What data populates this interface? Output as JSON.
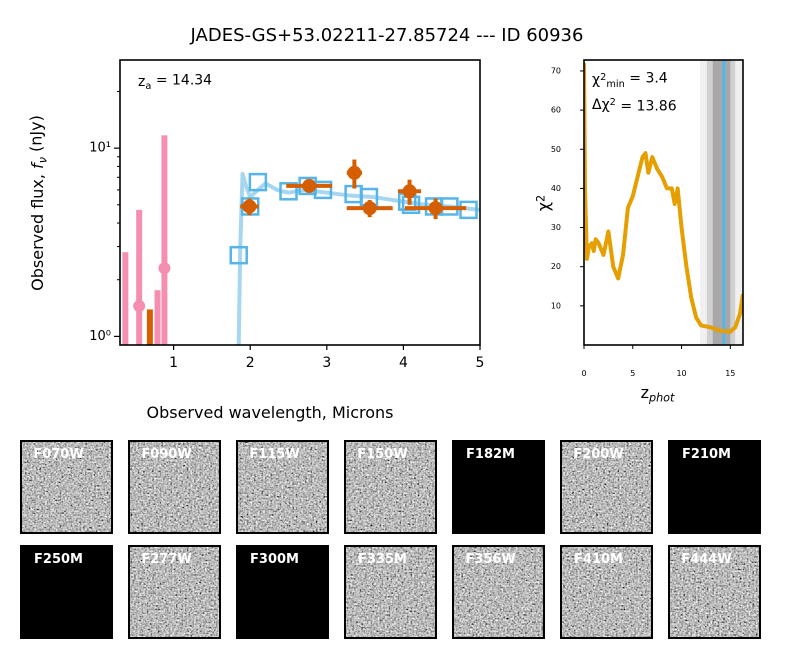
{
  "title": "JADES-GS+53.02211-27.85724 --- ID 60936",
  "chart_data": [
    {
      "type": "sed",
      "xlabel": [
        {
          "text": "Observed wavelength, Microns"
        }
      ],
      "ylabel": [
        {
          "text": "Observed flux, "
        },
        {
          "text": "f",
          "italic": true
        },
        {
          "text": "ν",
          "sub": true,
          "italic": true
        },
        {
          "text": " (nJy)"
        }
      ],
      "annotation": [
        {
          "text": "z"
        },
        {
          "text": "a",
          "sub": true
        },
        {
          "text": " = 14.34"
        }
      ],
      "xlim": [
        0.3,
        5
      ],
      "ylim": [
        0.9,
        29.4
      ],
      "ylog": true,
      "xticks": [
        1,
        2,
        3,
        4,
        5
      ],
      "yticks": [
        {
          "value": 1,
          "label": "10⁰"
        },
        {
          "value": 10,
          "label": "10¹"
        }
      ],
      "model_spectrum": {
        "color": "#a6d6f0",
        "x": [
          1.85,
          1.87,
          1.9,
          1.95,
          2.0,
          2.1,
          2.2,
          2.35,
          2.5,
          2.7,
          3.0,
          3.3,
          3.6,
          4.0,
          4.3,
          4.6,
          5.0
        ],
        "values": [
          0.9,
          3.0,
          7.3,
          6.2,
          5.5,
          6.0,
          6.5,
          6.0,
          5.8,
          6.0,
          5.8,
          5.6,
          5.5,
          5.2,
          5.0,
          4.9,
          4.7
        ]
      },
      "limits": {
        "x": [
          0.37,
          0.55,
          0.69,
          0.79,
          0.88
        ],
        "values": [
          2.8,
          4.7,
          1.39,
          1.76,
          11.7
        ],
        "colors": [
          "#f48fb1",
          "#f48fb1",
          "#d55e00",
          "#f48fb1",
          "#f48fb1"
        ]
      },
      "low_snr": {
        "color": "#f48fb1",
        "x": [
          0.55,
          0.88
        ],
        "values": [
          1.45,
          2.3
        ],
        "yerr": [
          0.2,
          0.3
        ]
      },
      "model_photometry": {
        "color": "#56b4e9",
        "x": [
          1.85,
          2.0,
          2.1,
          2.5,
          2.75,
          2.95,
          3.35,
          3.55,
          4.05,
          4.1,
          4.4,
          4.6,
          4.85
        ],
        "values": [
          2.7,
          4.9,
          6.6,
          5.9,
          6.3,
          6.0,
          5.7,
          5.5,
          5.2,
          5.0,
          4.9,
          4.9,
          4.7
        ]
      },
      "photometry": {
        "color": "#d55e00",
        "x": [
          1.99,
          2.77,
          3.36,
          3.56,
          4.08,
          4.42
        ],
        "values": [
          4.9,
          6.3,
          7.4,
          4.8,
          5.9,
          4.8
        ],
        "xerr": [
          0.12,
          0.3,
          0.1,
          0.3,
          0.15,
          0.4
        ],
        "yerr": [
          0.5,
          0.5,
          1.3,
          0.5,
          0.9,
          0.6
        ]
      }
    },
    {
      "type": "chi2",
      "xlabel": [
        {
          "text": "z"
        },
        {
          "text": "phot",
          "sub": true,
          "italic": true
        }
      ],
      "ylabel": [
        {
          "text": "χ"
        },
        {
          "text": "2",
          "sup": true
        }
      ],
      "annotations": [
        [
          {
            "text": "χ"
          },
          {
            "text": "2",
            "sup": true
          },
          {
            "text": "min",
            "sub": true
          },
          {
            "text": " = 3.4"
          }
        ],
        [
          {
            "text": "Δχ"
          },
          {
            "text": "2",
            "sup": true
          },
          {
            "text": " = 13.86"
          }
        ]
      ],
      "xlim": [
        0,
        16.3
      ],
      "ylim": [
        0,
        72.8
      ],
      "xticks": [
        0,
        5,
        10,
        15
      ],
      "yticks": [
        10,
        20,
        30,
        40,
        50,
        60,
        70
      ],
      "bands": [
        {
          "lo": 11.9,
          "hi": 16.3,
          "color": "#f0f0f0"
        },
        {
          "lo": 12.6,
          "hi": 15.5,
          "color": "#d0d0d0"
        },
        {
          "lo": 13.2,
          "hi": 15.0,
          "color": "#a8a8a8"
        }
      ],
      "z_best": 14.34,
      "z_color": "#56b4e9",
      "color": "#e69f00",
      "x": [
        0,
        0.1,
        0.3,
        0.5,
        0.8,
        1.0,
        1.2,
        1.5,
        2.0,
        2.5,
        3.0,
        3.5,
        4.0,
        4.5,
        5.0,
        5.5,
        6.0,
        6.3,
        6.6,
        7.0,
        7.5,
        8.0,
        8.5,
        9.0,
        9.3,
        9.6,
        10.0,
        10.5,
        11.0,
        11.5,
        12.0,
        13.0,
        14.0,
        15.0,
        15.5,
        16.0,
        16.3
      ],
      "values": [
        72,
        40,
        22,
        25,
        26,
        24,
        27,
        26,
        23,
        29,
        20,
        17,
        23,
        35,
        38,
        43,
        48,
        49,
        44,
        48,
        45,
        43,
        40,
        40,
        36,
        40,
        30,
        20,
        12,
        7,
        5,
        4.5,
        3.6,
        3.4,
        4.5,
        8,
        13
      ]
    }
  ],
  "stamps": [
    {
      "filter": "F070W",
      "blank": false
    },
    {
      "filter": "F090W",
      "blank": false
    },
    {
      "filter": "F115W",
      "blank": false
    },
    {
      "filter": "F150W",
      "blank": false
    },
    {
      "filter": "F182M",
      "blank": true
    },
    {
      "filter": "F200W",
      "blank": false
    },
    {
      "filter": "F210M",
      "blank": true
    },
    {
      "filter": "F250M",
      "blank": true
    },
    {
      "filter": "F277W",
      "blank": false
    },
    {
      "filter": "F300M",
      "blank": true
    },
    {
      "filter": "F335M",
      "blank": false
    },
    {
      "filter": "F356W",
      "blank": false
    },
    {
      "filter": "F410M",
      "blank": false
    },
    {
      "filter": "F444W",
      "blank": false
    }
  ]
}
